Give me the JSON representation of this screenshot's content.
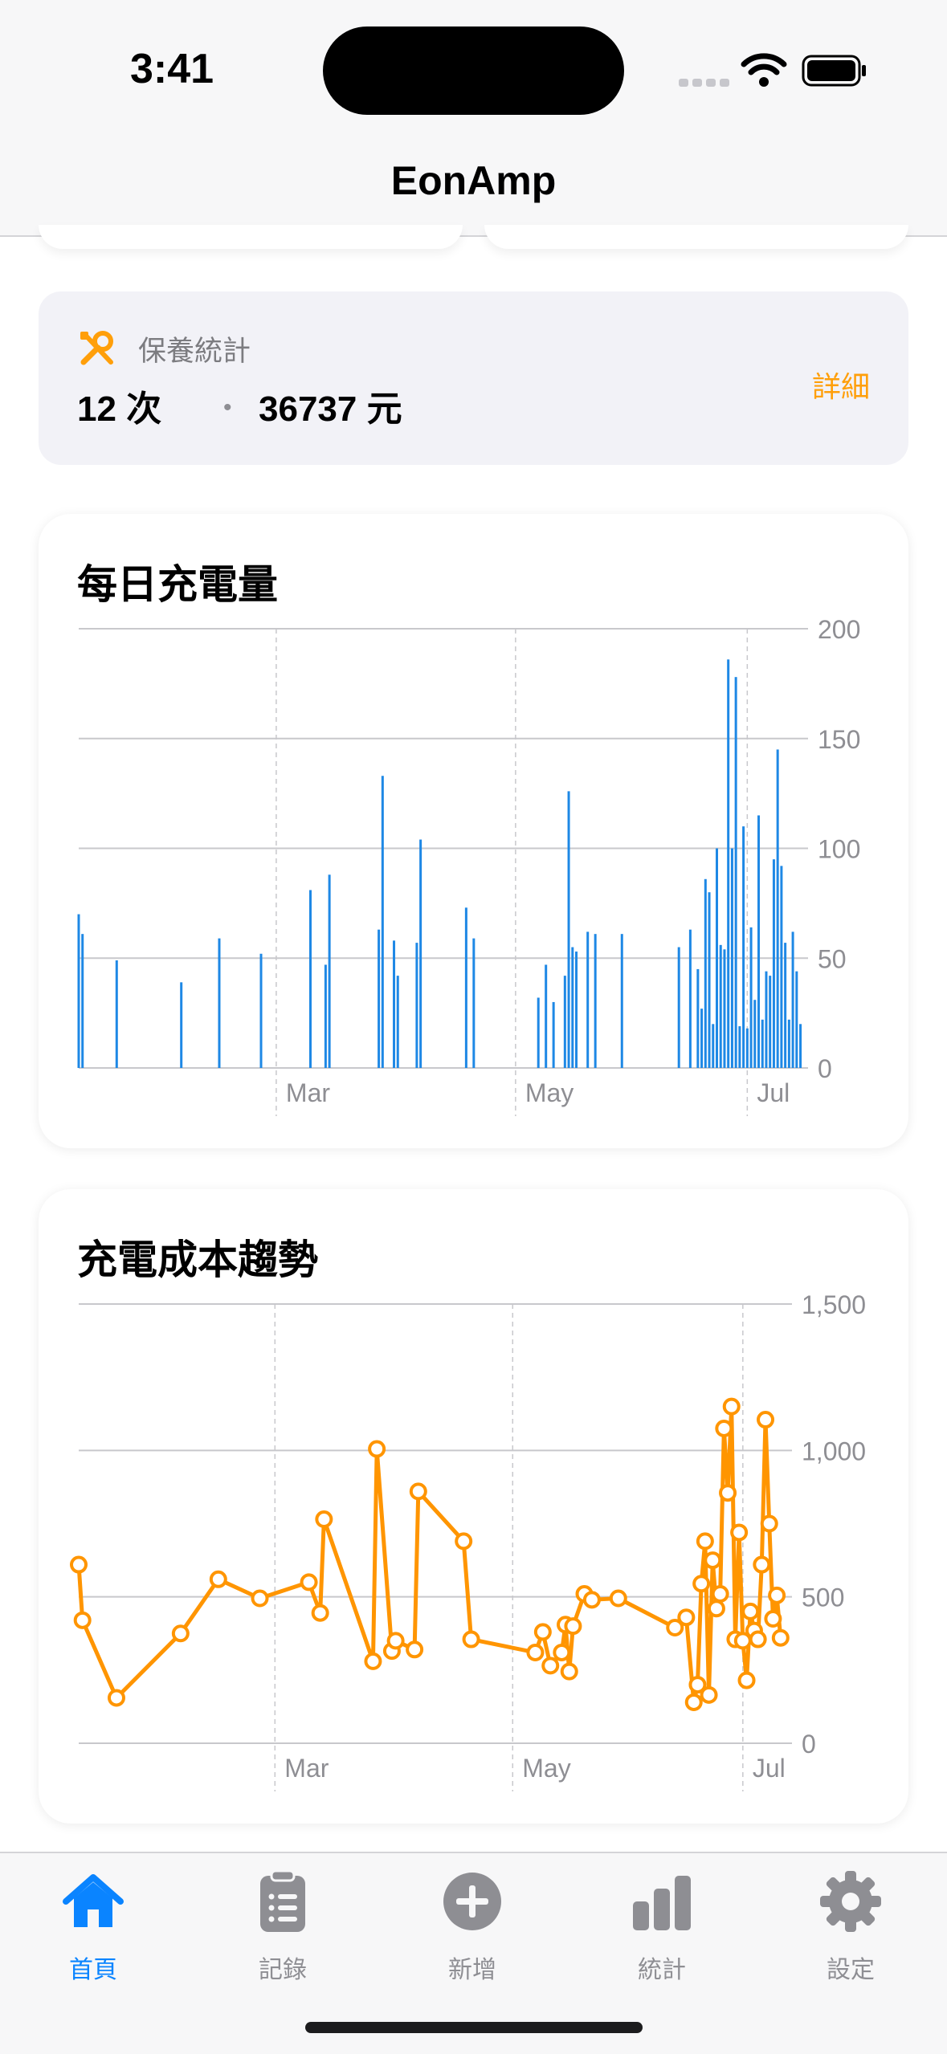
{
  "status": {
    "time": "3:41"
  },
  "nav": {
    "title": "EonAmp"
  },
  "maintenance": {
    "label": "保養統計",
    "count": "12 次",
    "amount": "36737 元",
    "detail": "詳細",
    "icon": "wrench-screwdriver-icon",
    "accent": "#ff9f0a"
  },
  "daily_chart": {
    "title": "每日充電量",
    "y_ticks": [
      "200",
      "150",
      "100",
      "50",
      "0"
    ],
    "x_ticks": [
      "Mar",
      "May",
      "Jul"
    ]
  },
  "cost_chart": {
    "title": "充電成本趨勢",
    "y_ticks": [
      "1,500",
      "1,000",
      "500",
      "0"
    ],
    "x_ticks": [
      "Mar",
      "May",
      "Jul"
    ]
  },
  "chart_data": [
    {
      "type": "bar",
      "title": "每日充電量",
      "color": "#1e88e5",
      "x_unit": "day (Jan 1 = 0)",
      "xlim": [
        0,
        192
      ],
      "ylim": [
        0,
        200
      ],
      "x_ticks": [
        {
          "label": "Mar",
          "x": 52
        },
        {
          "label": "May",
          "x": 115
        },
        {
          "label": "Jul",
          "x": 176
        }
      ],
      "x": [
        0,
        1,
        10,
        27,
        37,
        48,
        61,
        65,
        66,
        79,
        80,
        83,
        84,
        89,
        90,
        102,
        104,
        121,
        123,
        125,
        128,
        129,
        130,
        131,
        134,
        136,
        143,
        158,
        161,
        163,
        164,
        165,
        166,
        167,
        168,
        169,
        170,
        171,
        172,
        173,
        174,
        175,
        176,
        177,
        178,
        179,
        180,
        181,
        182,
        183,
        184,
        185,
        186,
        187,
        188,
        189,
        190
      ],
      "values": [
        70,
        61,
        49,
        39,
        59,
        52,
        81,
        47,
        88,
        63,
        133,
        58,
        42,
        57,
        104,
        73,
        59,
        32,
        47,
        30,
        42,
        126,
        55,
        53,
        62,
        61,
        61,
        55,
        63,
        45,
        27,
        86,
        80,
        20,
        100,
        56,
        54,
        186,
        100,
        178,
        19,
        110,
        18,
        64,
        31,
        115,
        22,
        44,
        42,
        95,
        145,
        92,
        57,
        22,
        62,
        44,
        20
      ]
    },
    {
      "type": "line",
      "title": "充電成本趨勢",
      "color": "#ff9500",
      "x_unit": "day (Jan 1 = 0)",
      "xlim": [
        0,
        192
      ],
      "ylim": [
        0,
        1500
      ],
      "x_ticks": [
        {
          "label": "Mar",
          "x": 52
        },
        {
          "label": "May",
          "x": 115
        },
        {
          "label": "Jul",
          "x": 176
        }
      ],
      "points": [
        [
          0,
          610
        ],
        [
          1,
          420
        ],
        [
          10,
          155
        ],
        [
          27,
          375
        ],
        [
          37,
          560
        ],
        [
          48,
          495
        ],
        [
          61,
          550
        ],
        [
          64,
          445
        ],
        [
          65,
          765
        ],
        [
          78,
          280
        ],
        [
          79,
          1005
        ],
        [
          83,
          315
        ],
        [
          84,
          350
        ],
        [
          89,
          320
        ],
        [
          90,
          860
        ],
        [
          102,
          690
        ],
        [
          104,
          355
        ],
        [
          121,
          310
        ],
        [
          123,
          380
        ],
        [
          125,
          265
        ],
        [
          128,
          310
        ],
        [
          129,
          405
        ],
        [
          130,
          245
        ],
        [
          131,
          400
        ],
        [
          134,
          510
        ],
        [
          136,
          490
        ],
        [
          143,
          495
        ],
        [
          158,
          395
        ],
        [
          161,
          430
        ],
        [
          163,
          140
        ],
        [
          164,
          200
        ],
        [
          165,
          545
        ],
        [
          166,
          690
        ],
        [
          167,
          165
        ],
        [
          168,
          625
        ],
        [
          169,
          460
        ],
        [
          170,
          510
        ],
        [
          171,
          1075
        ],
        [
          172,
          855
        ],
        [
          173,
          1150
        ],
        [
          174,
          355
        ],
        [
          175,
          720
        ],
        [
          176,
          350
        ],
        [
          177,
          215
        ],
        [
          178,
          450
        ],
        [
          179,
          385
        ],
        [
          180,
          355
        ],
        [
          181,
          610
        ],
        [
          182,
          1105
        ],
        [
          183,
          750
        ],
        [
          184,
          425
        ],
        [
          185,
          505
        ],
        [
          186,
          360
        ]
      ]
    }
  ],
  "tabs": [
    {
      "label": "首頁",
      "icon": "house-icon",
      "active": true
    },
    {
      "label": "記錄",
      "icon": "clipboard-icon",
      "active": false
    },
    {
      "label": "新增",
      "icon": "plus-circle-icon",
      "active": false
    },
    {
      "label": "統計",
      "icon": "bar-chart-icon",
      "active": false
    },
    {
      "label": "設定",
      "icon": "gear-icon",
      "active": false
    }
  ]
}
